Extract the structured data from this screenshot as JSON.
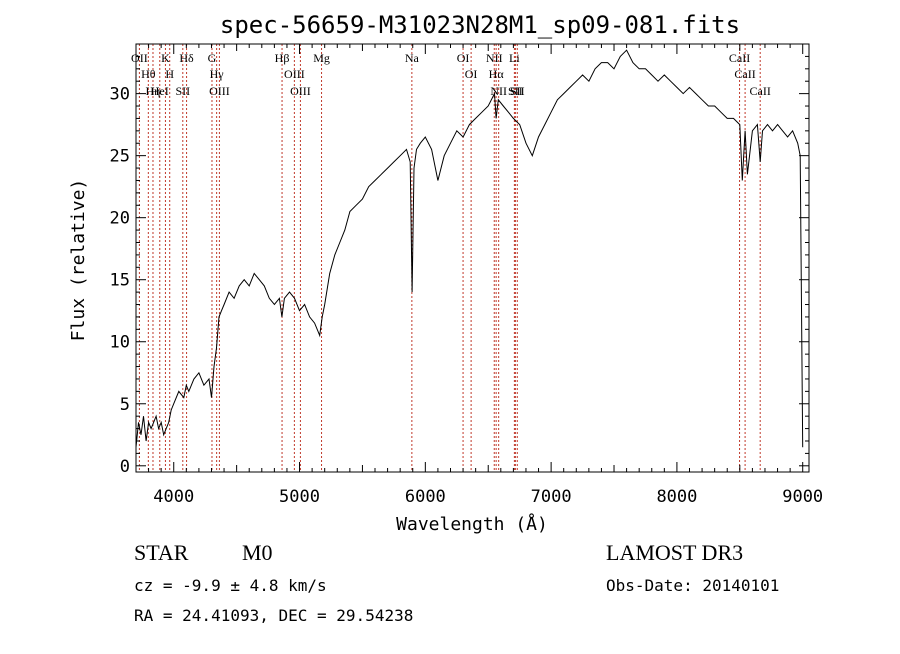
{
  "chart_data": {
    "type": "line",
    "title": "spec-56659-M31023N28M1_sp09-081.fits",
    "xlabel": "Wavelength (Å)",
    "ylabel": "Flux (relative)",
    "xlim": [
      3700,
      9050
    ],
    "ylim": [
      -0.5,
      34
    ],
    "x_ticks": [
      4000,
      5000,
      6000,
      7000,
      8000,
      9000
    ],
    "y_ticks": [
      0,
      5,
      10,
      15,
      20,
      25,
      30
    ],
    "grid": false,
    "series": [
      {
        "x": [
          3700,
          3720,
          3740,
          3760,
          3780,
          3800,
          3820,
          3840,
          3860,
          3880,
          3900,
          3920,
          3940,
          3960,
          3980,
          4000,
          4040,
          4080,
          4100,
          4120,
          4160,
          4200,
          4240,
          4280,
          4300,
          4320,
          4340,
          4360,
          4380,
          4400,
          4440,
          4480,
          4520,
          4560,
          4600,
          4640,
          4680,
          4720,
          4760,
          4800,
          4840,
          4860,
          4880,
          4920,
          4960,
          5000,
          5040,
          5080,
          5120,
          5160,
          5180,
          5200,
          5240,
          5280,
          5320,
          5360,
          5400,
          5450,
          5500,
          5550,
          5600,
          5650,
          5700,
          5750,
          5800,
          5850,
          5880,
          5895,
          5910,
          5930,
          5960,
          6000,
          6050,
          6100,
          6150,
          6200,
          6250,
          6300,
          6350,
          6400,
          6450,
          6500,
          6550,
          6563,
          6580,
          6620,
          6660,
          6700,
          6750,
          6800,
          6850,
          6900,
          6950,
          7000,
          7050,
          7100,
          7150,
          7200,
          7250,
          7300,
          7350,
          7400,
          7450,
          7500,
          7550,
          7600,
          7650,
          7700,
          7750,
          7800,
          7850,
          7900,
          7950,
          8000,
          8050,
          8100,
          8150,
          8200,
          8250,
          8300,
          8350,
          8400,
          8450,
          8500,
          8520,
          8542,
          8560,
          8600,
          8640,
          8662,
          8680,
          8720,
          8760,
          8800,
          8840,
          8880,
          8920,
          8960,
          8980,
          9000
        ],
        "y": [
          1.5,
          3.5,
          2.5,
          4.0,
          2.0,
          3.5,
          3.0,
          3.5,
          4.0,
          3.0,
          3.5,
          2.5,
          3.0,
          3.5,
          4.5,
          5.0,
          6.0,
          5.5,
          6.5,
          6.0,
          7.0,
          7.5,
          6.5,
          7.0,
          5.5,
          8.0,
          9.5,
          12.0,
          12.5,
          13.0,
          14.0,
          13.5,
          14.5,
          15.0,
          14.5,
          15.5,
          15.0,
          14.5,
          13.5,
          13.0,
          13.5,
          12.0,
          13.5,
          14.0,
          13.5,
          12.5,
          13.0,
          12.0,
          11.5,
          10.5,
          12.0,
          13.0,
          15.5,
          17.0,
          18.0,
          19.0,
          20.5,
          21.0,
          21.5,
          22.5,
          23.0,
          23.5,
          24.0,
          24.5,
          25.0,
          25.5,
          24.5,
          14.0,
          24.0,
          25.5,
          26.0,
          26.5,
          25.5,
          23.0,
          25.0,
          26.0,
          27.0,
          26.5,
          27.5,
          28.0,
          28.5,
          29.0,
          30.0,
          28.0,
          29.5,
          29.0,
          28.5,
          28.0,
          27.5,
          26.0,
          25.0,
          26.5,
          27.5,
          28.5,
          29.5,
          30.0,
          30.5,
          31.0,
          31.5,
          31.0,
          32.0,
          32.5,
          32.5,
          32.0,
          33.0,
          33.5,
          32.5,
          32.0,
          32.0,
          31.5,
          31.0,
          31.5,
          31.0,
          30.5,
          30.0,
          30.5,
          30.0,
          29.5,
          29.0,
          29.0,
          28.5,
          28.0,
          28.0,
          27.5,
          23.0,
          27.0,
          23.5,
          27.0,
          27.5,
          24.5,
          27.0,
          27.5,
          27.0,
          27.5,
          27.0,
          26.5,
          27.0,
          26.0,
          25.0,
          1.5
        ]
      }
    ],
    "lines": [
      {
        "x": 3727,
        "label": "OII"
      },
      {
        "x": 3798,
        "label": "Hθ"
      },
      {
        "x": 3835,
        "label": "Hη"
      },
      {
        "x": 3889,
        "label": "HeI"
      },
      {
        "x": 3934,
        "label": "K"
      },
      {
        "x": 3968,
        "label": "H"
      },
      {
        "x": 4072,
        "label": "SII"
      },
      {
        "x": 4102,
        "label": "Hδ"
      },
      {
        "x": 4304,
        "label": "G"
      },
      {
        "x": 4341,
        "label": "Hγ"
      },
      {
        "x": 4363,
        "label": "OIII"
      },
      {
        "x": 4861,
        "label": "Hβ"
      },
      {
        "x": 4959,
        "label": "OIII"
      },
      {
        "x": 5007,
        "label": "OIII"
      },
      {
        "x": 5175,
        "label": "Mg"
      },
      {
        "x": 5893,
        "label": "Na"
      },
      {
        "x": 6300,
        "label": "OI"
      },
      {
        "x": 6364,
        "label": "OI"
      },
      {
        "x": 6548,
        "label": "NII"
      },
      {
        "x": 6563,
        "label": "Hα"
      },
      {
        "x": 6583,
        "label": "NII"
      },
      {
        "x": 6708,
        "label": "Li"
      },
      {
        "x": 6716,
        "label": "SII"
      },
      {
        "x": 6731,
        "label": "SII"
      },
      {
        "x": 8498,
        "label": "CaII"
      },
      {
        "x": 8542,
        "label": "CaII"
      },
      {
        "x": 8662,
        "label": "CaII"
      }
    ]
  },
  "info": {
    "class_label": "STAR",
    "subclass": "M0",
    "survey": "LAMOST DR3",
    "cz": "cz = -9.9 ± 4.8 km/s",
    "obs_date": "Obs-Date: 20140101",
    "coords": "RA =  24.41093, DEC =  29.54238"
  }
}
